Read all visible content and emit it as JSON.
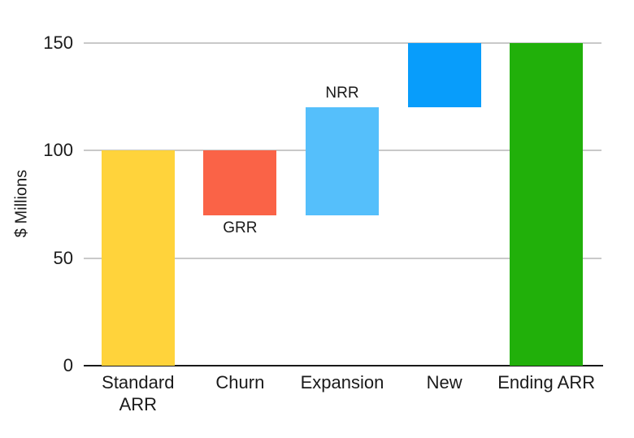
{
  "chart_data": {
    "type": "bar",
    "subtype": "waterfall",
    "title": "",
    "xlabel": "",
    "ylabel": "$ Millions",
    "ylim": [
      0,
      150
    ],
    "yticks": [
      0,
      50,
      100,
      150
    ],
    "grid": true,
    "legend": false,
    "categories": [
      "Standard ARR",
      "Churn",
      "Expansion",
      "New",
      "Ending ARR"
    ],
    "bars": [
      {
        "label": "Standard ARR",
        "label_lines": [
          "Standard",
          "ARR"
        ],
        "start": 0,
        "end": 100,
        "delta": 100,
        "color": "#FFD33B",
        "annotation": "",
        "annotation_pos": ""
      },
      {
        "label": "Churn",
        "label_lines": [
          "Churn"
        ],
        "start": 70,
        "end": 100,
        "delta": -30,
        "color": "#FA6347",
        "annotation": "GRR",
        "annotation_pos": "below"
      },
      {
        "label": "Expansion",
        "label_lines": [
          "Expansion"
        ],
        "start": 70,
        "end": 120,
        "delta": 50,
        "color": "#55BFFB",
        "annotation": "NRR",
        "annotation_pos": "above"
      },
      {
        "label": "New",
        "label_lines": [
          "New"
        ],
        "start": 120,
        "end": 150,
        "delta": 30,
        "color": "#089DFB",
        "annotation": "",
        "annotation_pos": ""
      },
      {
        "label": "Ending ARR",
        "label_lines": [
          "Ending ARR"
        ],
        "start": 0,
        "end": 150,
        "delta": 150,
        "color": "#21B00A",
        "annotation": "",
        "annotation_pos": ""
      }
    ],
    "colors": {
      "gridline": "#c9c9c9",
      "axis": "#1a1a1a",
      "text": "#1a1a1a",
      "background": "#ffffff"
    }
  }
}
